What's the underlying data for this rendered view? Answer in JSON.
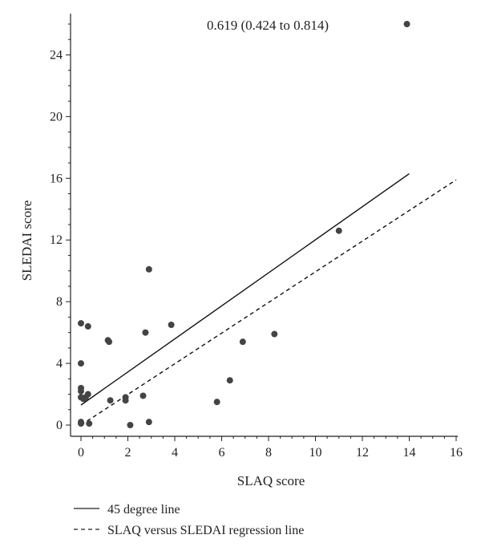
{
  "chart_data": {
    "type": "scatter",
    "title": "",
    "annotation": "0.619 (0.424 to 0.814)",
    "xlabel": "SLAQ score",
    "ylabel": "SLEDAI score",
    "xlim": [
      0,
      16
    ],
    "ylim": [
      0,
      26
    ],
    "xticks": [
      0,
      2,
      4,
      6,
      8,
      10,
      12,
      14,
      16
    ],
    "yticks": [
      0,
      4,
      8,
      12,
      16,
      20,
      24
    ],
    "grid": false,
    "legend_position": "bottom",
    "point_color": "#444444",
    "points": [
      {
        "x": 0.0,
        "y": 6.6
      },
      {
        "x": 0.3,
        "y": 6.4
      },
      {
        "x": 0.0,
        "y": 4.0
      },
      {
        "x": 0.0,
        "y": 2.4
      },
      {
        "x": 0.0,
        "y": 2.2
      },
      {
        "x": 0.3,
        "y": 2.0
      },
      {
        "x": 0.0,
        "y": 1.8
      },
      {
        "x": 0.1,
        "y": 1.7
      },
      {
        "x": 0.2,
        "y": 1.8
      },
      {
        "x": 0.0,
        "y": 0.2
      },
      {
        "x": 0.0,
        "y": 0.1
      },
      {
        "x": 0.35,
        "y": 0.1
      },
      {
        "x": 1.15,
        "y": 5.5
      },
      {
        "x": 1.2,
        "y": 5.4
      },
      {
        "x": 1.25,
        "y": 1.6
      },
      {
        "x": 1.9,
        "y": 1.8
      },
      {
        "x": 1.9,
        "y": 1.6
      },
      {
        "x": 2.1,
        "y": 0.0
      },
      {
        "x": 2.9,
        "y": 10.1
      },
      {
        "x": 2.75,
        "y": 6.0
      },
      {
        "x": 2.65,
        "y": 1.9
      },
      {
        "x": 2.9,
        "y": 0.2
      },
      {
        "x": 3.85,
        "y": 6.5
      },
      {
        "x": 5.8,
        "y": 1.5
      },
      {
        "x": 6.35,
        "y": 2.9
      },
      {
        "x": 6.9,
        "y": 5.4
      },
      {
        "x": 8.25,
        "y": 5.9
      },
      {
        "x": 11.0,
        "y": 12.6
      },
      {
        "x": 13.9,
        "y": 26.0
      }
    ],
    "series": [
      {
        "name": "45 degree line",
        "style": "solid",
        "x": [
          0,
          14
        ],
        "y": [
          1.3,
          16.3
        ]
      },
      {
        "name": "SLAQ versus SLEDAI regression line",
        "style": "dashed",
        "x": [
          0,
          16
        ],
        "y": [
          0,
          15.9
        ]
      }
    ]
  }
}
